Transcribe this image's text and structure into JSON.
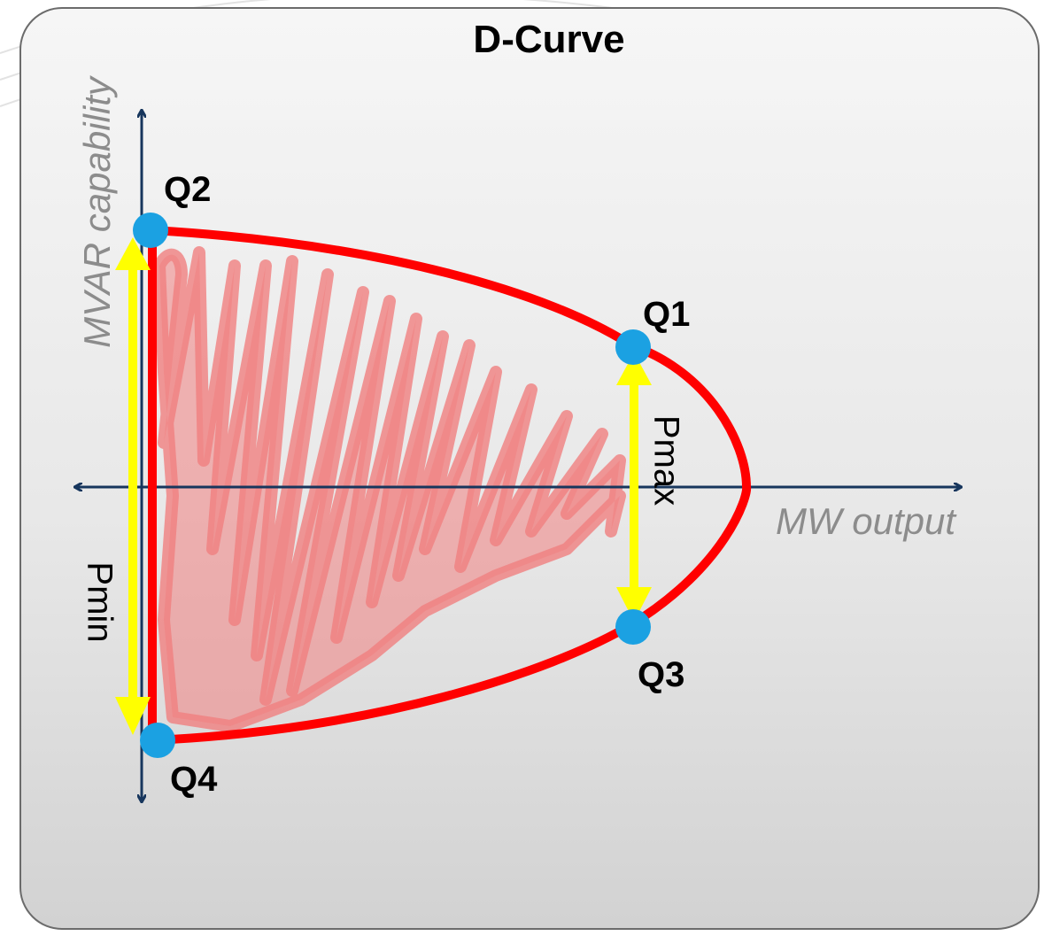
{
  "title": "D-Curve",
  "axes": {
    "x_label": "MW output",
    "y_label": "MVAR capability"
  },
  "points": {
    "q1": "Q1",
    "q2": "Q2",
    "q3": "Q3",
    "q4": "Q4"
  },
  "ranges": {
    "pmax": "Pmax",
    "pmin": "Pmin"
  },
  "colors": {
    "curve": "#ff0000",
    "shading": "#f08080",
    "axes": "#17365d",
    "range_arrows": "#ffff00",
    "points": "#1ba1e2"
  }
}
